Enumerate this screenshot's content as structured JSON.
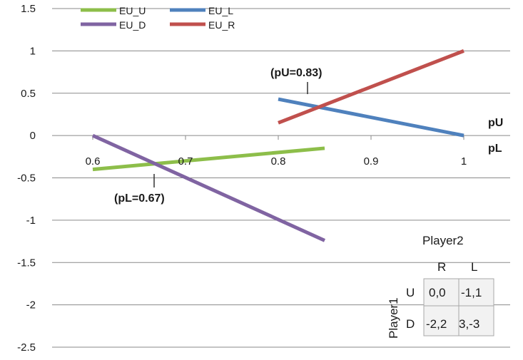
{
  "chart_data": {
    "type": "line",
    "xlim": [
      0.55,
      1.05
    ],
    "ylim": [
      -2.5,
      1.5
    ],
    "y_ticks": [
      1.5,
      1,
      0.5,
      0,
      -0.5,
      -1,
      -1.5,
      -2,
      -2.5
    ],
    "y_tick_labels": [
      "1.5",
      "1",
      "0.5",
      "0",
      "-0.5",
      "-1",
      "-1.5",
      "-2",
      "-2.5"
    ],
    "x_ticks": [
      0.6,
      0.7,
      0.8,
      0.9,
      1
    ],
    "x_tick_labels": [
      "0.6",
      "0.7",
      "0.8",
      "0.9",
      "1"
    ],
    "grid": true,
    "legend_position": "top-left",
    "series": [
      {
        "name": "EU_U",
        "color": "#8DBE4A",
        "x": [
          0.6,
          0.85
        ],
        "y": [
          -0.4,
          -0.15
        ]
      },
      {
        "name": "EU_L",
        "color": "#4F81BD",
        "x": [
          0.8,
          1.0
        ],
        "y": [
          0.43,
          0.0
        ]
      },
      {
        "name": "EU_D",
        "color": "#8064A2",
        "x": [
          0.6,
          0.85
        ],
        "y": [
          0.0,
          -1.24
        ]
      },
      {
        "name": "EU_R",
        "color": "#C0504D",
        "x": [
          0.8,
          1.0
        ],
        "y": [
          0.15,
          1.0
        ]
      }
    ],
    "axis_labels": {
      "pU": "pU",
      "pL": "pL"
    },
    "annotations": [
      {
        "text": "(pU=0.83)",
        "x": 0.835,
        "y": 0.36
      },
      {
        "text": "(pL=0.67)",
        "x": 0.667,
        "y": -0.36
      }
    ]
  },
  "payoff_table": {
    "title": "Player2",
    "row_player": "Player1",
    "col_headers": [
      "R",
      "L"
    ],
    "row_headers": [
      "U",
      "D"
    ],
    "cells": [
      [
        "0,0",
        "-1,1"
      ],
      [
        "-2,2",
        "3,-3"
      ]
    ]
  }
}
